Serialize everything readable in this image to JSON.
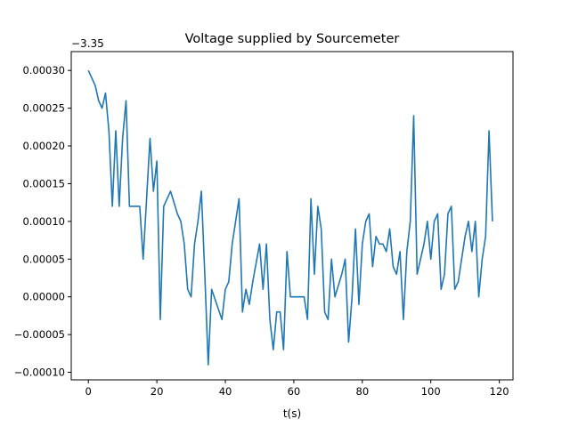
{
  "chart_data": {
    "type": "line",
    "title": "Voltage supplied by Sourcemeter",
    "xlabel": "t(s)",
    "ylabel": "",
    "y_offset_label": "−3.35",
    "xlim": [
      -5,
      124
    ],
    "ylim": [
      -0.00011,
      0.000325
    ],
    "x_ticks": [
      0,
      20,
      40,
      60,
      80,
      100,
      120
    ],
    "x_tick_labels": [
      "0",
      "20",
      "40",
      "60",
      "80",
      "100",
      "120"
    ],
    "y_ticks": [
      -0.0001,
      -5e-05,
      0.0,
      5e-05,
      0.0001,
      0.00015,
      0.0002,
      0.00025,
      0.0003
    ],
    "y_tick_labels": [
      "−0.00010",
      "−0.00005",
      "0.00000",
      "0.00005",
      "0.00010",
      "0.00015",
      "0.00020",
      "0.00025",
      "0.00030"
    ],
    "grid": false,
    "legend": "none",
    "color": "#1f77b4",
    "series": [
      {
        "x": [
          0,
          2,
          3,
          4,
          5,
          6,
          7,
          8,
          9,
          10,
          11,
          12,
          14,
          15,
          16,
          17,
          18,
          19,
          20,
          21,
          22,
          24,
          26,
          27,
          28,
          29,
          30,
          31,
          32,
          33,
          34,
          35,
          36,
          39,
          40,
          41,
          42,
          43,
          44,
          45,
          46,
          47,
          48,
          50,
          51,
          52,
          53,
          54,
          55,
          56,
          57,
          58,
          59,
          60,
          61,
          62,
          63,
          64,
          65,
          66,
          67,
          68,
          69,
          70,
          71,
          72,
          74,
          75,
          76,
          77,
          78,
          79,
          80,
          81,
          82,
          83,
          84,
          85,
          86,
          87,
          88,
          89,
          90,
          91,
          92,
          93,
          94,
          95,
          96,
          97,
          98,
          99,
          100,
          101,
          102,
          103,
          104,
          105,
          106,
          107,
          108,
          109,
          110,
          111,
          112,
          113,
          114,
          115,
          116,
          117,
          118
        ],
        "values": [
          0.0003,
          0.00028,
          0.00026,
          0.00025,
          0.00027,
          0.00022,
          0.00012,
          0.00022,
          0.00012,
          0.00021,
          0.00026,
          0.00012,
          0.00012,
          0.00012,
          5e-05,
          0.00013,
          0.00021,
          0.00014,
          0.00018,
          -3e-05,
          0.00012,
          0.00014,
          0.00011,
          0.0001,
          7e-05,
          1e-05,
          0.0,
          7e-05,
          0.0001,
          0.00014,
          3e-05,
          -9e-05,
          1e-05,
          -3e-05,
          1e-05,
          2e-05,
          7e-05,
          0.0001,
          0.00013,
          -2e-05,
          1e-05,
          -1e-05,
          2e-05,
          7e-05,
          1e-05,
          7e-05,
          -3e-05,
          -7e-05,
          -2e-05,
          -2e-05,
          -7e-05,
          6e-05,
          0.0,
          0.0,
          0.0,
          0.0,
          0.0,
          -3e-05,
          0.00013,
          3e-05,
          0.00012,
          9e-05,
          -2e-05,
          -3e-05,
          5e-05,
          0.0,
          3e-05,
          5e-05,
          -6e-05,
          0.0,
          9e-05,
          -1e-05,
          7e-05,
          0.0001,
          0.00011,
          4e-05,
          8e-05,
          7e-05,
          7e-05,
          6e-05,
          9e-05,
          4e-05,
          3e-05,
          6e-05,
          -3e-05,
          6e-05,
          0.0001,
          0.00024,
          3e-05,
          5e-05,
          7e-05,
          0.0001,
          5e-05,
          0.0001,
          0.00011,
          1e-05,
          3e-05,
          0.00011,
          0.00012,
          1e-05,
          2e-05,
          5e-05,
          8e-05,
          0.0001,
          6e-05,
          0.0001,
          0.0,
          5e-05,
          8e-05,
          0.00022,
          0.0001
        ]
      }
    ]
  }
}
